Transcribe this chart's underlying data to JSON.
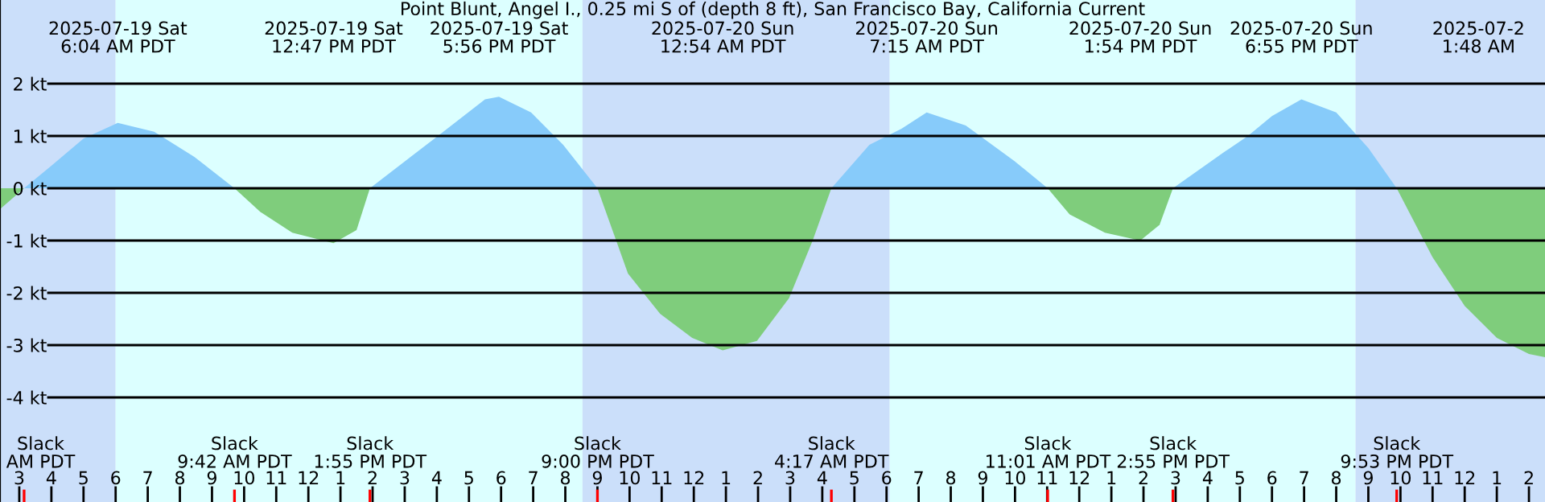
{
  "chart_data": {
    "type": "area",
    "title": "Point Blunt, Angel I., 0.25 mi S of (depth 8 ft), San Francisco Bay, California Current",
    "series": [
      {
        "color": "#87cbfa",
        "x": [
          "2025-07-19T03:09",
          "2025-07-19T04:00",
          "2025-07-19T05:00",
          "2025-07-19T06:04",
          "2025-07-19T07:12",
          "2025-07-19T08:27",
          "2025-07-19T09:42",
          null,
          "2025-07-19T13:55",
          "2025-07-19T16:02",
          "2025-07-19T17:30",
          "2025-07-19T17:56",
          "2025-07-19T18:56",
          "2025-07-19T19:56",
          "2025-07-19T21:00",
          null,
          "2025-07-20T04:17",
          "2025-07-20T05:28",
          "2025-07-20T06:28",
          "2025-07-20T07:15",
          "2025-07-20T08:28",
          "2025-07-20T09:59",
          "2025-07-20T11:01",
          null,
          "2025-07-20T14:55",
          "2025-07-20T16:29",
          "2025-07-20T17:15",
          "2025-07-20T18:00",
          "2025-07-20T18:55",
          "2025-07-20T20:00",
          "2025-07-20T21:00",
          "2025-07-20T21:53"
        ],
        "values": [
          0,
          0.43,
          0.95,
          1.25,
          1.08,
          0.6,
          0,
          null,
          0,
          1.0,
          1.7,
          1.75,
          1.45,
          0.83,
          0,
          null,
          0,
          0.83,
          1.14,
          1.45,
          1.2,
          0.52,
          0,
          null,
          0,
          0.68,
          1.0,
          1.38,
          1.7,
          1.45,
          0.77,
          0
        ]
      },
      {
        "color": "#7fcd7c",
        "x": [
          "2025-07-19T02:24",
          "2025-07-19T03:09",
          null,
          "2025-07-19T09:42",
          "2025-07-19T10:30",
          "2025-07-19T11:30",
          "2025-07-19T12:47",
          "2025-07-19T13:30",
          "2025-07-19T13:55",
          null,
          "2025-07-19T21:00",
          "2025-07-19T21:57",
          "2025-07-19T22:57",
          "2025-07-19T23:57",
          "2025-07-20T00:54",
          "2025-07-20T01:58",
          "2025-07-20T02:58",
          "2025-07-20T03:42",
          "2025-07-20T04:17",
          null,
          "2025-07-20T11:01",
          "2025-07-20T11:42",
          "2025-07-20T12:48",
          "2025-07-20T13:54",
          "2025-07-20T14:30",
          "2025-07-20T14:55",
          null,
          "2025-07-20T21:53",
          "2025-07-20T23:00",
          "2025-07-21T00:00",
          "2025-07-21T01:00",
          "2025-07-21T02:00",
          "2025-07-21T02:30"
        ],
        "values": [
          -0.4,
          0,
          null,
          0,
          -0.45,
          -0.85,
          -1.05,
          -0.8,
          0,
          null,
          0,
          -1.63,
          -2.4,
          -2.86,
          -3.1,
          -2.92,
          -2.1,
          -1.0,
          0,
          null,
          0,
          -0.5,
          -0.85,
          -1.0,
          -0.7,
          0,
          null,
          0,
          -1.32,
          -2.25,
          -2.86,
          -3.17,
          -3.23
        ]
      }
    ],
    "xlim": [
      "2025-07-19T02:24",
      "2025-07-21T02:30"
    ],
    "ylim": [
      -6.0,
      3.6
    ],
    "yticks": [
      {
        "value": 2,
        "label": "2 kt"
      },
      {
        "value": 1,
        "label": "1 kt"
      },
      {
        "value": 0,
        "label": "0 kt"
      },
      {
        "value": -1,
        "label": "-1 kt"
      },
      {
        "value": -2,
        "label": "-2 kt"
      },
      {
        "value": -3,
        "label": "-3 kt"
      },
      {
        "value": -4,
        "label": "-4 kt"
      }
    ],
    "xticks": [
      {
        "value": "2025-07-19T03:00",
        "label": "3"
      },
      {
        "value": "2025-07-19T04:00",
        "label": "4"
      },
      {
        "value": "2025-07-19T05:00",
        "label": "5"
      },
      {
        "value": "2025-07-19T06:00",
        "label": "6"
      },
      {
        "value": "2025-07-19T07:00",
        "label": "7"
      },
      {
        "value": "2025-07-19T08:00",
        "label": "8"
      },
      {
        "value": "2025-07-19T09:00",
        "label": "9"
      },
      {
        "value": "2025-07-19T10:00",
        "label": "10"
      },
      {
        "value": "2025-07-19T11:00",
        "label": "11"
      },
      {
        "value": "2025-07-19T12:00",
        "label": "12"
      },
      {
        "value": "2025-07-19T13:00",
        "label": "1"
      },
      {
        "value": "2025-07-19T14:00",
        "label": "2"
      },
      {
        "value": "2025-07-19T15:00",
        "label": "3"
      },
      {
        "value": "2025-07-19T16:00",
        "label": "4"
      },
      {
        "value": "2025-07-19T17:00",
        "label": "5"
      },
      {
        "value": "2025-07-19T18:00",
        "label": "6"
      },
      {
        "value": "2025-07-19T19:00",
        "label": "7"
      },
      {
        "value": "2025-07-19T20:00",
        "label": "8"
      },
      {
        "value": "2025-07-19T21:00",
        "label": "9"
      },
      {
        "value": "2025-07-19T22:00",
        "label": "10"
      },
      {
        "value": "2025-07-19T23:00",
        "label": "11"
      },
      {
        "value": "2025-07-20T00:00",
        "label": "12"
      },
      {
        "value": "2025-07-20T01:00",
        "label": "1"
      },
      {
        "value": "2025-07-20T02:00",
        "label": "2"
      },
      {
        "value": "2025-07-20T03:00",
        "label": "3"
      },
      {
        "value": "2025-07-20T04:00",
        "label": "4"
      },
      {
        "value": "2025-07-20T05:00",
        "label": "5"
      },
      {
        "value": "2025-07-20T06:00",
        "label": "6"
      },
      {
        "value": "2025-07-20T07:00",
        "label": "7"
      },
      {
        "value": "2025-07-20T08:00",
        "label": "8"
      },
      {
        "value": "2025-07-20T09:00",
        "label": "9"
      },
      {
        "value": "2025-07-20T10:00",
        "label": "10"
      },
      {
        "value": "2025-07-20T11:00",
        "label": "11"
      },
      {
        "value": "2025-07-20T12:00",
        "label": "12"
      },
      {
        "value": "2025-07-20T13:00",
        "label": "1"
      },
      {
        "value": "2025-07-20T14:00",
        "label": "2"
      },
      {
        "value": "2025-07-20T15:00",
        "label": "3"
      },
      {
        "value": "2025-07-20T16:00",
        "label": "4"
      },
      {
        "value": "2025-07-20T17:00",
        "label": "5"
      },
      {
        "value": "2025-07-20T18:00",
        "label": "6"
      },
      {
        "value": "2025-07-20T19:00",
        "label": "7"
      },
      {
        "value": "2025-07-20T20:00",
        "label": "8"
      },
      {
        "value": "2025-07-20T21:00",
        "label": "9"
      },
      {
        "value": "2025-07-20T22:00",
        "label": "10"
      },
      {
        "value": "2025-07-20T23:00",
        "label": "11"
      },
      {
        "value": "2025-07-21T00:00",
        "label": "12"
      },
      {
        "value": "2025-07-21T01:00",
        "label": "1"
      },
      {
        "value": "2025-07-21T02:00",
        "label": "2"
      }
    ],
    "grid": "y",
    "bands": [
      {
        "axis": "x",
        "from": "2025-07-19T02:24",
        "to": "2025-07-19T06:00",
        "color": "#cbdffa"
      },
      {
        "axis": "x",
        "from": "2025-07-19T06:00",
        "to": "2025-07-19T20:32",
        "color": "#dcffff"
      },
      {
        "axis": "x",
        "from": "2025-07-19T20:32",
        "to": "2025-07-20T06:06",
        "color": "#cbdffa"
      },
      {
        "axis": "x",
        "from": "2025-07-20T06:06",
        "to": "2025-07-20T20:36",
        "color": "#dcffff"
      },
      {
        "axis": "x",
        "from": "2025-07-20T20:36",
        "to": "2025-07-21T02:30",
        "color": "#cbdffa"
      }
    ],
    "annotations": [
      "2025-07-19 Sat\n6:04 AM PDT",
      "2025-07-19 Sat\n12:47 PM PDT",
      "2025-07-19 Sat\n5:56 PM PDT",
      "2025-07-20 Sun\n12:54 AM PDT",
      "2025-07-20 Sun\n7:15 AM PDT",
      "2025-07-20 Sun\n1:54 PM PDT",
      "2025-07-20 Sun\n6:55 PM PDT",
      "2025-07-2\n1:48 AM"
    ],
    "ref_lines": [
      {
        "axis": "x",
        "value": "2025-07-19T03:09",
        "label": "Slack\nAM PDT",
        "color": "#ff0000"
      },
      {
        "axis": "x",
        "value": "2025-07-19T09:42",
        "label": "Slack\n9:42 AM PDT",
        "color": "#ff0000"
      },
      {
        "axis": "x",
        "value": "2025-07-19T13:55",
        "label": "Slack\n1:55 PM PDT",
        "color": "#ff0000"
      },
      {
        "axis": "x",
        "value": "2025-07-19T21:00",
        "label": "Slack\n9:00 PM PDT",
        "color": "#ff0000"
      },
      {
        "axis": "x",
        "value": "2025-07-20T04:17",
        "label": "Slack\n4:17 AM PDT",
        "color": "#ff0000"
      },
      {
        "axis": "x",
        "value": "2025-07-20T11:01",
        "label": "Slack\n11:01 AM PDT",
        "color": "#ff0000"
      },
      {
        "axis": "x",
        "value": "2025-07-20T14:55",
        "label": "Slack\n2:55 PM PDT",
        "color": "#ff0000"
      },
      {
        "axis": "x",
        "value": "2025-07-20T21:53",
        "label": "Slack\n9:53 PM PDT",
        "color": "#ff0000"
      }
    ]
  }
}
